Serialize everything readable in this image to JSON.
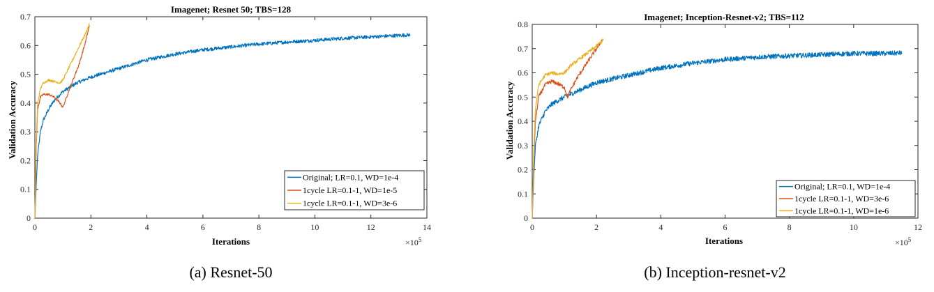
{
  "colors": {
    "original": "#0072BD",
    "onecycle_a": "#D95319",
    "onecycle_b": "#EDB120"
  },
  "chart_data": [
    {
      "type": "line",
      "title": "Imagenet; Resnet 50; TBS=128",
      "xlabel": "Iterations",
      "ylabel": "Validation Accuracy",
      "x_multiplier": "×10",
      "x_multiplier_exp": "5",
      "xlim": [
        0,
        14
      ],
      "ylim": [
        0,
        0.7
      ],
      "xticks": [
        "0",
        "2",
        "4",
        "6",
        "8",
        "10",
        "12",
        "14"
      ],
      "yticks": [
        "0",
        "0.1",
        "0.2",
        "0.3",
        "0.4",
        "0.5",
        "0.6",
        "0.7"
      ],
      "legend_position": "bottom-right",
      "caption": "(a) Resnet-50",
      "series": [
        {
          "name": "Original; LR=0.1, WD=1e-4",
          "color": "#0072BD",
          "x": [
            0,
            0.05,
            0.1,
            0.2,
            0.3,
            0.5,
            0.7,
            1.0,
            1.5,
            2.0,
            3.0,
            4.0,
            5.0,
            6.0,
            7.0,
            8.0,
            9.0,
            10.0,
            11.0,
            12.0,
            13.0,
            13.4
          ],
          "y": [
            0,
            0.12,
            0.22,
            0.3,
            0.34,
            0.38,
            0.41,
            0.44,
            0.47,
            0.49,
            0.52,
            0.55,
            0.57,
            0.585,
            0.595,
            0.605,
            0.612,
            0.618,
            0.625,
            0.63,
            0.635,
            0.637
          ],
          "noise": 0.006
        },
        {
          "name": "1cycle LR=0.1-1, WD=1e-5",
          "color": "#D95319",
          "x": [
            0,
            0.05,
            0.1,
            0.2,
            0.3,
            0.5,
            0.7,
            0.9,
            1.0,
            1.2,
            1.4,
            1.6,
            1.8,
            1.95
          ],
          "y": [
            0,
            0.25,
            0.38,
            0.42,
            0.43,
            0.43,
            0.42,
            0.4,
            0.385,
            0.44,
            0.49,
            0.54,
            0.61,
            0.67
          ],
          "noise": 0.004
        },
        {
          "name": "1cycle LR=0.1-1, WD=3e-6",
          "color": "#EDB120",
          "x": [
            0,
            0.05,
            0.1,
            0.2,
            0.3,
            0.5,
            0.7,
            0.9,
            1.0,
            1.2,
            1.4,
            1.6,
            1.8,
            1.95
          ],
          "y": [
            0,
            0.27,
            0.4,
            0.45,
            0.47,
            0.48,
            0.475,
            0.47,
            0.48,
            0.52,
            0.56,
            0.6,
            0.64,
            0.675
          ],
          "noise": 0.004
        }
      ]
    },
    {
      "type": "line",
      "title": "Imagenet; Inception-Resnet-v2; TBS=112",
      "xlabel": "Iterations",
      "ylabel": "Validation Accuracy",
      "x_multiplier": "×10",
      "x_multiplier_exp": "5",
      "xlim": [
        0,
        12
      ],
      "ylim": [
        0,
        0.8
      ],
      "xticks": [
        "0",
        "2",
        "4",
        "6",
        "8",
        "10",
        "12"
      ],
      "yticks": [
        "0",
        "0.1",
        "0.2",
        "0.3",
        "0.4",
        "0.5",
        "0.6",
        "0.7",
        "0.8"
      ],
      "legend_position": "bottom-right",
      "caption": "(b) Inception-resnet-v2",
      "series": [
        {
          "name": "Original; LR=0.1, WD=1e-4",
          "color": "#0072BD",
          "x": [
            0,
            0.05,
            0.1,
            0.2,
            0.4,
            0.6,
            1.0,
            1.5,
            2.0,
            3.0,
            4.0,
            5.0,
            6.0,
            7.0,
            8.0,
            9.0,
            10.0,
            11.0,
            11.5
          ],
          "y": [
            0,
            0.18,
            0.3,
            0.38,
            0.44,
            0.47,
            0.5,
            0.53,
            0.56,
            0.59,
            0.62,
            0.64,
            0.655,
            0.665,
            0.67,
            0.675,
            0.68,
            0.68,
            0.682
          ],
          "noise": 0.01
        },
        {
          "name": "1cycle LR=0.1-1, WD=3e-6",
          "color": "#D95319",
          "x": [
            0,
            0.05,
            0.1,
            0.2,
            0.4,
            0.6,
            0.8,
            1.0,
            1.1,
            1.2,
            1.4,
            1.6,
            1.8,
            2.0,
            2.2
          ],
          "y": [
            0,
            0.25,
            0.4,
            0.5,
            0.55,
            0.565,
            0.555,
            0.54,
            0.5,
            0.53,
            0.58,
            0.62,
            0.66,
            0.7,
            0.74
          ],
          "noise": 0.008
        },
        {
          "name": "1cycle LR=0.1-1, WD=1e-6",
          "color": "#EDB120",
          "x": [
            0,
            0.05,
            0.1,
            0.2,
            0.4,
            0.6,
            0.8,
            1.0,
            1.2,
            1.4,
            1.6,
            1.8,
            2.0,
            2.2
          ],
          "y": [
            0,
            0.28,
            0.45,
            0.55,
            0.59,
            0.6,
            0.595,
            0.6,
            0.63,
            0.65,
            0.67,
            0.69,
            0.71,
            0.735
          ],
          "noise": 0.007
        }
      ]
    }
  ]
}
